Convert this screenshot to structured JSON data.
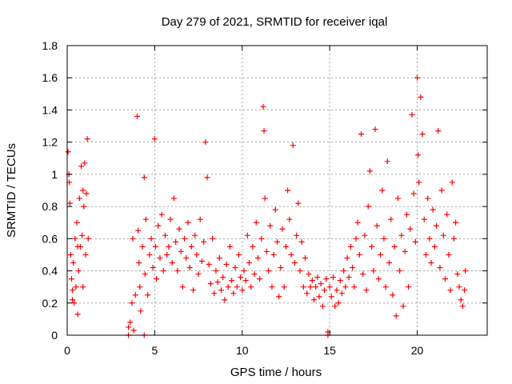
{
  "chart_data": {
    "type": "scatter",
    "title": "Day 279 of 2021, SRMTID for receiver iqal",
    "xlabel": "GPS time / hours",
    "ylabel": "SRMTID / TECUs",
    "xlim": [
      0,
      24
    ],
    "ylim": [
      0,
      1.8
    ],
    "xticks": [
      0,
      5,
      10,
      15,
      20
    ],
    "yticks": [
      0,
      0.2,
      0.4,
      0.6,
      0.8,
      1,
      1.2,
      1.4,
      1.6,
      1.8
    ],
    "grid": true,
    "legend": "none",
    "marker": "+",
    "color": "#ff0000",
    "series": [
      {
        "name": "SRMTID",
        "points": [
          [
            0.05,
            1.14
          ],
          [
            0.1,
            1.0
          ],
          [
            0.12,
            0.95
          ],
          [
            0.15,
            0.82
          ],
          [
            0.2,
            0.5
          ],
          [
            0.25,
            0.35
          ],
          [
            0.3,
            0.22
          ],
          [
            0.35,
            0.45
          ],
          [
            0.4,
            0.2
          ],
          [
            0.45,
            0.6
          ],
          [
            0.5,
            0.3
          ],
          [
            0.55,
            0.7
          ],
          [
            0.6,
            0.13
          ],
          [
            0.65,
            0.4
          ],
          [
            0.7,
            0.85
          ],
          [
            0.75,
            0.55
          ],
          [
            0.8,
            1.05
          ],
          [
            0.85,
            0.62
          ],
          [
            0.9,
            0.9
          ],
          [
            0.95,
            0.8
          ],
          [
            1.0,
            1.07
          ],
          [
            1.05,
            0.5
          ],
          [
            1.1,
            0.88
          ],
          [
            1.15,
            1.22
          ],
          [
            1.2,
            0.6
          ],
          [
            0.3,
            0.28
          ],
          [
            0.6,
            0.55
          ],
          [
            0.9,
            0.3
          ],
          [
            3.5,
            0.05
          ],
          [
            3.6,
            0.08
          ],
          [
            3.7,
            0.2
          ],
          [
            3.75,
            0.6
          ],
          [
            3.8,
            0.03
          ],
          [
            3.9,
            0.25
          ],
          [
            4.0,
            1.36
          ],
          [
            4.05,
            0.65
          ],
          [
            4.1,
            0.45
          ],
          [
            4.15,
            0.3
          ],
          [
            4.2,
            0.15
          ],
          [
            4.3,
            0.55
          ],
          [
            4.4,
            0.98
          ],
          [
            4.45,
            0.38
          ],
          [
            4.5,
            0.72
          ],
          [
            4.6,
            0.25
          ],
          [
            4.7,
            0.5
          ],
          [
            4.8,
            0.6
          ],
          [
            4.9,
            0.42
          ],
          [
            5.0,
            1.22
          ],
          [
            5.05,
            0.55
          ],
          [
            5.1,
            0.35
          ],
          [
            5.2,
            0.68
          ],
          [
            5.3,
            0.48
          ],
          [
            5.4,
            0.75
          ],
          [
            5.5,
            0.4
          ],
          [
            5.6,
            0.62
          ],
          [
            5.7,
            0.5
          ],
          [
            5.8,
            0.55
          ],
          [
            5.9,
            0.72
          ],
          [
            6.0,
            0.45
          ],
          [
            6.1,
            0.85
          ],
          [
            6.2,
            0.58
          ],
          [
            6.3,
            0.4
          ],
          [
            6.4,
            0.66
          ],
          [
            6.5,
            0.52
          ],
          [
            6.6,
            0.3
          ],
          [
            6.7,
            0.6
          ],
          [
            6.8,
            0.48
          ],
          [
            6.9,
            0.7
          ],
          [
            7.0,
            0.42
          ],
          [
            7.1,
            0.55
          ],
          [
            7.2,
            0.28
          ],
          [
            7.3,
            0.62
          ],
          [
            7.4,
            0.5
          ],
          [
            7.5,
            0.38
          ],
          [
            7.6,
            0.72
          ],
          [
            7.7,
            0.46
          ],
          [
            7.8,
            0.58
          ],
          [
            7.9,
            1.2
          ],
          [
            8.0,
            0.98
          ],
          [
            8.1,
            0.44
          ],
          [
            8.2,
            0.32
          ],
          [
            8.3,
            0.6
          ],
          [
            8.4,
            0.26
          ],
          [
            8.5,
            0.4
          ],
          [
            8.6,
            0.33
          ],
          [
            8.7,
            0.48
          ],
          [
            8.8,
            0.28
          ],
          [
            8.9,
            0.36
          ],
          [
            9.0,
            0.22
          ],
          [
            9.1,
            0.44
          ],
          [
            9.2,
            0.3
          ],
          [
            9.3,
            0.55
          ],
          [
            9.4,
            0.34
          ],
          [
            9.5,
            0.26
          ],
          [
            9.6,
            0.42
          ],
          [
            9.7,
            0.3
          ],
          [
            9.8,
            0.5
          ],
          [
            9.9,
            0.36
          ],
          [
            10.0,
            0.28
          ],
          [
            10.1,
            0.4
          ],
          [
            10.2,
            0.34
          ],
          [
            10.3,
            0.62
          ],
          [
            10.4,
            0.45
          ],
          [
            10.5,
            0.3
          ],
          [
            10.6,
            0.55
          ],
          [
            10.7,
            0.38
          ],
          [
            10.8,
            0.7
          ],
          [
            10.9,
            0.48
          ],
          [
            11.0,
            0.35
          ],
          [
            11.1,
            0.6
          ],
          [
            11.2,
            1.42
          ],
          [
            11.25,
            1.27
          ],
          [
            11.3,
            0.85
          ],
          [
            11.4,
            0.52
          ],
          [
            11.5,
            0.4
          ],
          [
            11.6,
            0.68
          ],
          [
            11.7,
            0.3
          ],
          [
            11.8,
            0.5
          ],
          [
            11.9,
            0.78
          ],
          [
            12.0,
            0.58
          ],
          [
            12.1,
            0.24
          ],
          [
            12.2,
            0.42
          ],
          [
            12.3,
            0.66
          ],
          [
            12.4,
            0.3
          ],
          [
            12.5,
            0.55
          ],
          [
            12.6,
            0.9
          ],
          [
            12.7,
            0.72
          ],
          [
            12.8,
            0.5
          ],
          [
            12.9,
            1.18
          ],
          [
            13.0,
            0.45
          ],
          [
            13.1,
            0.62
          ],
          [
            13.2,
            0.82
          ],
          [
            13.3,
            0.4
          ],
          [
            13.4,
            0.58
          ],
          [
            13.5,
            0.3
          ],
          [
            13.6,
            0.48
          ],
          [
            13.7,
            0.26
          ],
          [
            13.8,
            0.38
          ],
          [
            13.9,
            0.3
          ],
          [
            14.0,
            0.34
          ],
          [
            14.1,
            0.22
          ],
          [
            14.2,
            0.3
          ],
          [
            14.3,
            0.36
          ],
          [
            14.4,
            0.24
          ],
          [
            14.5,
            0.32
          ],
          [
            14.6,
            0.18
          ],
          [
            14.7,
            0.28
          ],
          [
            14.8,
            0.35
          ],
          [
            14.9,
            0.02
          ],
          [
            15.0,
            0.3
          ],
          [
            15.1,
            0.24
          ],
          [
            15.2,
            0.36
          ],
          [
            15.3,
            0.18
          ],
          [
            15.4,
            0.28
          ],
          [
            15.5,
            0.2
          ],
          [
            15.6,
            0.34
          ],
          [
            15.7,
            0.26
          ],
          [
            15.8,
            0.4
          ],
          [
            15.9,
            0.3
          ],
          [
            16.0,
            0.48
          ],
          [
            16.1,
            0.36
          ],
          [
            16.2,
            0.55
          ],
          [
            16.3,
            0.42
          ],
          [
            16.4,
            0.3
          ],
          [
            16.5,
            0.6
          ],
          [
            16.6,
            0.7
          ],
          [
            16.7,
            0.5
          ],
          [
            16.8,
            1.25
          ],
          [
            16.9,
            0.38
          ],
          [
            17.0,
            0.62
          ],
          [
            17.1,
            0.28
          ],
          [
            17.2,
            0.8
          ],
          [
            17.3,
            1.02
          ],
          [
            17.4,
            0.55
          ],
          [
            17.5,
            0.4
          ],
          [
            17.6,
            1.28
          ],
          [
            17.7,
            0.68
          ],
          [
            17.8,
            0.35
          ],
          [
            17.9,
            0.5
          ],
          [
            18.0,
            0.9
          ],
          [
            18.1,
            0.6
          ],
          [
            18.2,
            0.3
          ],
          [
            18.3,
            1.08
          ],
          [
            18.4,
            0.45
          ],
          [
            18.5,
            0.72
          ],
          [
            18.6,
            0.25
          ],
          [
            18.7,
            0.55
          ],
          [
            18.8,
            0.12
          ],
          [
            18.9,
            0.85
          ],
          [
            19.0,
            0.4
          ],
          [
            19.1,
            0.62
          ],
          [
            19.2,
            0.18
          ],
          [
            19.3,
            0.52
          ],
          [
            19.4,
            0.75
          ],
          [
            19.5,
            0.3
          ],
          [
            19.6,
            0.66
          ],
          [
            19.7,
            1.37
          ],
          [
            19.8,
            0.88
          ],
          [
            19.9,
            0.58
          ],
          [
            20.0,
            1.6
          ],
          [
            20.05,
            1.12
          ],
          [
            20.1,
            0.95
          ],
          [
            20.2,
            1.48
          ],
          [
            20.3,
            1.25
          ],
          [
            20.4,
            0.72
          ],
          [
            20.5,
            0.5
          ],
          [
            20.6,
            0.85
          ],
          [
            20.7,
            0.6
          ],
          [
            20.8,
            0.45
          ],
          [
            20.9,
            0.78
          ],
          [
            21.0,
            0.55
          ],
          [
            21.1,
            0.68
          ],
          [
            21.2,
            1.27
          ],
          [
            21.3,
            0.42
          ],
          [
            21.4,
            0.9
          ],
          [
            21.5,
            0.62
          ],
          [
            21.6,
            0.35
          ],
          [
            21.7,
            0.75
          ],
          [
            21.8,
            0.5
          ],
          [
            21.9,
            0.28
          ],
          [
            22.0,
            0.95
          ],
          [
            22.1,
            0.6
          ],
          [
            22.2,
            0.7
          ],
          [
            22.3,
            0.38
          ],
          [
            22.4,
            0.3
          ],
          [
            22.5,
            0.22
          ],
          [
            22.6,
            0.18
          ],
          [
            22.7,
            0.28
          ],
          [
            22.75,
            0.4
          ],
          [
            3.5,
            0.0
          ],
          [
            4.4,
            0.0
          ],
          [
            14.9,
            0.0
          ]
        ]
      }
    ]
  }
}
